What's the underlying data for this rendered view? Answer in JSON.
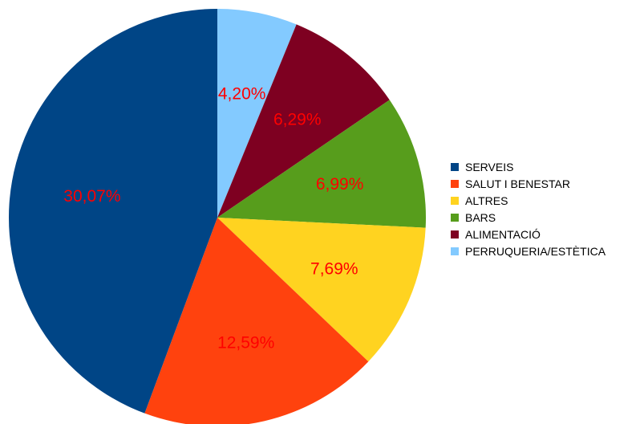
{
  "chart_data": {
    "type": "pie",
    "title": "",
    "label_color": "#ff0000",
    "slices": [
      {
        "name": "PERRUQUERIA/ESTÈTICA",
        "value": 4.2,
        "label": "4,20%",
        "color": "#83caff"
      },
      {
        "name": "ALIMENTACIÓ",
        "value": 6.29,
        "label": "6,29%",
        "color": "#7e0021"
      },
      {
        "name": "BARS",
        "value": 6.99,
        "label": "6,99%",
        "color": "#579d1c"
      },
      {
        "name": "ALTRES",
        "value": 7.69,
        "label": "7,69%",
        "color": "#ffd320"
      },
      {
        "name": "SALUT I BENESTAR",
        "value": 12.59,
        "label": "12,59%",
        "color": "#ff420e"
      },
      {
        "name": "SERVEIS",
        "value": 30.07,
        "label": "30,07%",
        "color": "#004586"
      }
    ],
    "legend": {
      "placement": "right",
      "items": [
        {
          "label": "SERVEIS",
          "color": "#004586"
        },
        {
          "label": "SALUT I BENESTAR",
          "color": "#ff420e"
        },
        {
          "label": "ALTRES",
          "color": "#ffd320"
        },
        {
          "label": "BARS",
          "color": "#579d1c"
        },
        {
          "label": "ALIMENTACIÓ",
          "color": "#7e0021"
        },
        {
          "label": "PERRUQUERIA/ESTÈTICA",
          "color": "#83caff"
        }
      ]
    }
  }
}
